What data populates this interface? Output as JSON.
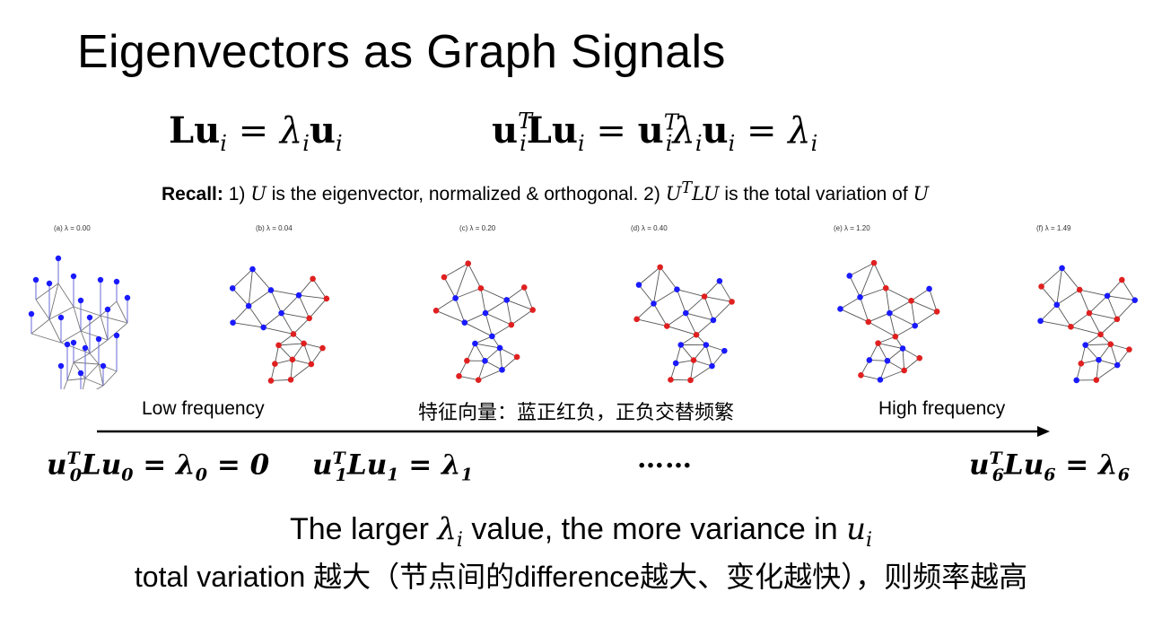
{
  "title": "Eigenvectors as Graph Signals",
  "recall": {
    "bold": "Recall:",
    "part1": " 1) ",
    "sym_U": "U",
    "part2": " is the eigenvector, normalized & orthogonal. 2) ",
    "sym_UTLU": "U",
    "sym_T": "T",
    "sym_LU": "LU",
    "part3": " is the total variation of ",
    "sym_U2": "U"
  },
  "panels": [
    {
      "caption": "(a) λ = 0.00"
    },
    {
      "caption": "(b) λ = 0.04"
    },
    {
      "caption": "(c) λ = 0.20"
    },
    {
      "caption": "(d) λ = 0.40"
    },
    {
      "caption": "(e) λ = 1.20"
    },
    {
      "caption": "(f) λ = 1.49"
    }
  ],
  "axis": {
    "low_label": "Low frequency",
    "middle_label": "特征向量：蓝正红负，正负交替频繁",
    "high_label": "High frequency",
    "dots": "……"
  },
  "colors": {
    "positive_node": "#1a1aff",
    "negative_node": "#e02020",
    "edge": "#555555",
    "low_edge": "#6a6ad8"
  },
  "bottom": {
    "line1_a": "The larger ",
    "line1_lambda": "λ",
    "line1_i": "i",
    "line1_b": " value, the more variance in ",
    "line1_u": "u",
    "line1_ui": "i",
    "line2": "total variation 越大（节点间的difference越大、变化越快），则频率越高"
  }
}
